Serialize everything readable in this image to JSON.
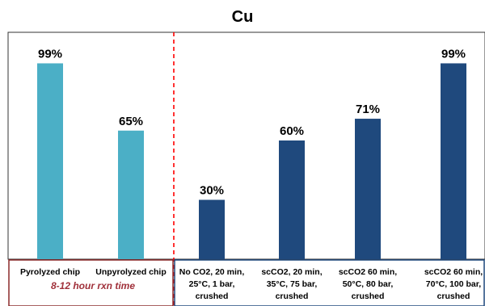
{
  "colors": {
    "pyrolyzed_series": "#4bafc6",
    "scco2_series": "#1f497d",
    "divider": "#ff0000",
    "group_box_left": "#8b2a2a",
    "group_box_right": "#1f497d",
    "note_text": "#a0303a"
  },
  "chart_data": {
    "type": "bar",
    "title": "Cu",
    "xlabel": "",
    "ylabel": "",
    "ylim": [
      0,
      100
    ],
    "grid": false,
    "categories": [
      [
        "Pyrolyzed chip"
      ],
      [
        "Unpyrolyzed chip"
      ],
      [
        "No CO2, 20 min,",
        "25°C, 1 bar,",
        "crushed"
      ],
      [
        "scCO2, 20 min,",
        "35°C, 75 bar,",
        "crushed"
      ],
      [
        "scCO2 60 min,",
        "50°C, 80 bar,",
        "crushed"
      ],
      [
        "scCO2 60 min,",
        "70°C, 100 bar,",
        "crushed"
      ]
    ],
    "values": [
      99,
      65,
      30,
      60,
      71,
      99
    ],
    "value_labels": [
      "99%",
      "65%",
      "30%",
      "60%",
      "71%",
      "99%"
    ],
    "bar_color_keys": [
      "pyrolyzed_series",
      "pyrolyzed_series",
      "scco2_series",
      "scco2_series",
      "scco2_series",
      "scco2_series"
    ],
    "group_note": "8-12 hour rxn time",
    "divider_after_category": 1
  }
}
